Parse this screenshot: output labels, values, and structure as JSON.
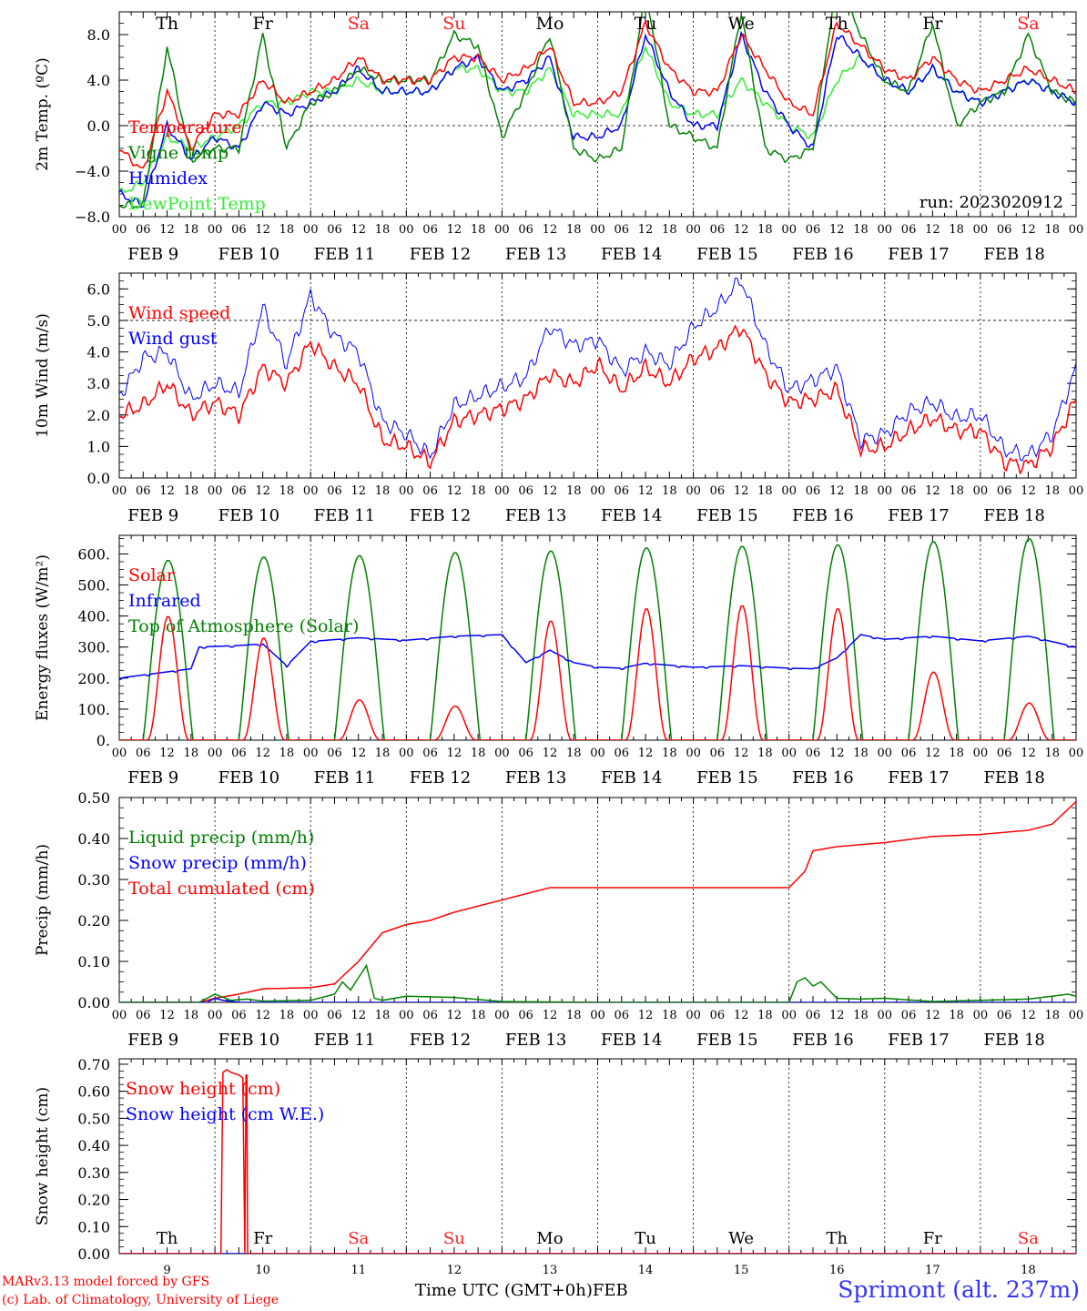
{
  "time_axis": {
    "day_names": [
      "Th",
      "Fr",
      "Sa",
      "Su",
      "Mo",
      "Tu",
      "We",
      "Th",
      "Fr",
      "Sa"
    ],
    "day_name_colors": [
      "#000000",
      "#000000",
      "#ff2020",
      "#ff2020",
      "#000000",
      "#000000",
      "#000000",
      "#000000",
      "#000000",
      "#ff2020"
    ],
    "date_labels": [
      "FEB  9",
      "FEB 10",
      "FEB 11",
      "FEB 12",
      "FEB 13",
      "FEB 14",
      "FEB 15",
      "FEB 16",
      "FEB 17",
      "FEB 18"
    ],
    "hour_ticks": [
      "00",
      "06",
      "12",
      "18"
    ],
    "final_tick": "00",
    "day_numbers": [
      "9",
      "10",
      "11",
      "12",
      "13",
      "14",
      "15",
      "16",
      "17",
      "18"
    ],
    "title": "Time UTC (GMT+0h)",
    "month": "FEB"
  },
  "run_label": "run: 2023020912",
  "credits": [
    "MARv3.13 model forced by GFS",
    "(c) Lab. of Climatology, University of Liege"
  ],
  "station": "Sprimont (alt. 237m)",
  "chart_data": [
    {
      "type": "line",
      "ylabel": "2m Temp. (ºC)",
      "ylim": [
        -8,
        10
      ],
      "yticks": [
        "8.0",
        "4.0",
        "0.0",
        "−4.0",
        "−8.0"
      ],
      "ytick_values": [
        8,
        4,
        0,
        -4,
        -8
      ],
      "ref_line": 0,
      "grid": "vertical day lines",
      "x_unit": "hours since FEB 9 00 UTC",
      "series": [
        {
          "name": "Temperature",
          "color": "#ff0000",
          "x": [
            0,
            6,
            12,
            18,
            24,
            30,
            36,
            42,
            48,
            54,
            60,
            66,
            72,
            78,
            84,
            90,
            96,
            102,
            108,
            114,
            120,
            126,
            132,
            138,
            144,
            150,
            156,
            162,
            168,
            174,
            180,
            186,
            192,
            198,
            204,
            210,
            216,
            222,
            228,
            234,
            240
          ],
          "values": [
            -2,
            -4,
            3,
            -2,
            1,
            1,
            4,
            2,
            3,
            4,
            6,
            4,
            4,
            4,
            6,
            6,
            4,
            5,
            7,
            2,
            2,
            3,
            9,
            5,
            3,
            3,
            8,
            5,
            2,
            1,
            9,
            7,
            5,
            4,
            6,
            4,
            3,
            4,
            5,
            4,
            3
          ]
        },
        {
          "name": "Vigne temp",
          "color": "#008000",
          "x": [
            0,
            6,
            12,
            18,
            24,
            30,
            36,
            42,
            48,
            54,
            60,
            66,
            72,
            78,
            84,
            90,
            96,
            102,
            108,
            114,
            120,
            126,
            132,
            138,
            144,
            150,
            156,
            162,
            168,
            174,
            180,
            186,
            192,
            198,
            204,
            210,
            216,
            222,
            228,
            234,
            240
          ],
          "values": [
            -7,
            -7,
            7,
            -3,
            -2,
            -2,
            8,
            -2,
            2,
            3,
            5,
            4,
            4,
            4,
            8,
            7,
            -1,
            3,
            8,
            -2,
            -3,
            -2,
            12,
            0,
            -1,
            -2,
            10,
            -2,
            -3,
            -2,
            13,
            8,
            4,
            3,
            9,
            0,
            2,
            3,
            8,
            3,
            2
          ]
        },
        {
          "name": "Humidex",
          "color": "#0000ff",
          "x": [
            0,
            6,
            12,
            18,
            24,
            30,
            36,
            42,
            48,
            54,
            60,
            66,
            72,
            78,
            84,
            90,
            96,
            102,
            108,
            114,
            120,
            126,
            132,
            138,
            144,
            150,
            156,
            162,
            168,
            174,
            180,
            186,
            192,
            198,
            204,
            210,
            216,
            222,
            228,
            234,
            240
          ],
          "values": [
            -6,
            -7,
            0,
            -3,
            -1,
            -2,
            2,
            1,
            2,
            3,
            5,
            3,
            3,
            3,
            5,
            6,
            3,
            4,
            6,
            -1,
            -1,
            0,
            8,
            3,
            0,
            0,
            8,
            3,
            0,
            -2,
            8,
            6,
            4,
            3,
            5,
            3,
            2,
            3,
            4,
            3,
            2
          ]
        },
        {
          "name": "DewPoint Temp",
          "color": "#33ee33",
          "x": [
            0,
            6,
            12,
            18,
            24,
            30,
            36,
            42,
            48,
            54,
            60,
            66,
            72,
            78,
            84,
            90,
            96,
            102,
            108,
            114,
            120,
            126,
            132,
            138,
            144,
            150,
            156,
            162,
            168,
            174,
            180,
            186,
            192,
            198,
            204,
            210,
            216,
            222,
            228,
            234,
            240
          ],
          "values": [
            -6,
            -5,
            -1,
            -2,
            -1,
            0,
            2,
            2,
            3,
            3,
            4,
            3,
            3,
            3,
            5,
            5,
            3,
            3,
            5,
            1,
            1,
            1,
            7,
            2,
            1,
            1,
            4,
            2,
            0,
            -1,
            4,
            6,
            4,
            3,
            5,
            3,
            2,
            3,
            4,
            3,
            2
          ]
        }
      ]
    },
    {
      "type": "line",
      "ylabel": "10m Wind (m/s)",
      "ylim": [
        0,
        6.5
      ],
      "yticks": [
        "6.0",
        "5.0",
        "4.0",
        "3.0",
        "2.0",
        "1.0",
        "0.0"
      ],
      "ytick_values": [
        6,
        5,
        4,
        3,
        2,
        1,
        0
      ],
      "ref_line": 5,
      "grid": "vertical day lines",
      "x_unit": "hours since FEB 9 00 UTC",
      "series": [
        {
          "name": "Wind speed",
          "color": "#ff0000",
          "x": [
            0,
            6,
            12,
            18,
            24,
            30,
            36,
            42,
            48,
            54,
            60,
            66,
            72,
            78,
            84,
            90,
            96,
            102,
            108,
            114,
            120,
            126,
            132,
            138,
            144,
            150,
            156,
            162,
            168,
            174,
            180,
            186,
            192,
            198,
            204,
            210,
            216,
            222,
            228,
            234,
            240
          ],
          "values": [
            2,
            2.3,
            3,
            2,
            2.4,
            2,
            3.5,
            3,
            4.3,
            3.5,
            3,
            1.2,
            1,
            0.5,
            1.8,
            2,
            2.2,
            2.5,
            3.3,
            3,
            3.6,
            2.8,
            3.5,
            3,
            3.8,
            4.1,
            4.8,
            3.3,
            2.4,
            2.5,
            2.8,
            0.9,
            1,
            1.5,
            1.9,
            1.5,
            1.5,
            0.5,
            0.4,
            1,
            2.5
          ]
        },
        {
          "name": "Wind gust",
          "color": "#0000ff",
          "x": [
            0,
            6,
            12,
            18,
            24,
            30,
            36,
            42,
            48,
            54,
            60,
            66,
            72,
            78,
            84,
            90,
            96,
            102,
            108,
            114,
            120,
            126,
            132,
            138,
            144,
            150,
            156,
            162,
            168,
            174,
            180,
            186,
            192,
            198,
            204,
            210,
            216,
            222,
            228,
            234,
            240
          ],
          "values": [
            2.6,
            3.8,
            4,
            2.5,
            3,
            2.7,
            5.4,
            3.6,
            5.8,
            4.5,
            4,
            1.8,
            1.4,
            0.7,
            2.3,
            2.6,
            2.9,
            3.2,
            4.8,
            4.2,
            4.4,
            3.4,
            4,
            3.6,
            4.8,
            5.4,
            6.3,
            4.2,
            2.8,
            3.1,
            3.5,
            1.2,
            1.4,
            2.1,
            2.4,
            1.9,
            2,
            0.9,
            0.7,
            1.4,
            3.5
          ]
        }
      ]
    },
    {
      "type": "line",
      "ylabel": "Energy fluxes (W/m²)",
      "ylim": [
        0,
        660
      ],
      "yticks": [
        "600.",
        "500.",
        "400.",
        "300.",
        "200.",
        "100.",
        "0."
      ],
      "ytick_values": [
        600,
        500,
        400,
        300,
        200,
        100,
        0
      ],
      "grid": "vertical day lines",
      "x_unit": "hours since FEB 9 00 UTC",
      "solar_peaks_by_day": [
        400,
        330,
        130,
        110,
        385,
        425,
        435,
        425,
        220,
        120
      ],
      "toa_peaks_by_day": [
        580,
        590,
        595,
        605,
        610,
        620,
        625,
        630,
        640,
        650
      ],
      "series": [
        {
          "name": "Solar",
          "color": "#ff0000",
          "values": [
            400,
            330,
            130,
            110,
            385,
            425,
            435,
            425,
            220,
            120
          ]
        },
        {
          "name": "Infrared",
          "color": "#0000ff",
          "x": [
            0,
            6,
            12,
            18,
            20,
            30,
            36,
            42,
            48,
            60,
            72,
            84,
            96,
            102,
            108,
            114,
            120,
            126,
            132,
            144,
            156,
            168,
            174,
            180,
            186,
            192,
            204,
            216,
            228,
            240
          ],
          "values": [
            200,
            210,
            220,
            230,
            300,
            305,
            310,
            240,
            318,
            330,
            322,
            335,
            340,
            250,
            290,
            250,
            235,
            232,
            248,
            235,
            240,
            232,
            230,
            265,
            340,
            325,
            335,
            320,
            335,
            300
          ]
        },
        {
          "name": "Top of Atmosphere (Solar)",
          "color": "#008000",
          "values": [
            580,
            590,
            595,
            605,
            610,
            620,
            625,
            630,
            640,
            650
          ]
        }
      ]
    },
    {
      "type": "line",
      "ylabel": "Precip (mm/h)",
      "ylim": [
        0,
        0.5
      ],
      "yticks": [
        "0.50",
        "0.40",
        "0.30",
        "0.20",
        "0.10",
        "0.00"
      ],
      "ytick_values": [
        0.5,
        0.4,
        0.3,
        0.2,
        0.1,
        0
      ],
      "grid": "vertical day lines",
      "x_unit": "hours since FEB 9 00 UTC",
      "series": [
        {
          "name": "Liquid precip (mm/h)",
          "color": "#008000",
          "x": [
            0,
            20,
            24,
            28,
            32,
            36,
            48,
            54,
            56,
            58,
            60,
            62,
            64,
            66,
            72,
            84,
            96,
            120,
            168,
            170,
            172,
            174,
            176,
            180,
            186,
            192,
            204,
            216,
            228,
            234,
            238,
            240
          ],
          "values": [
            0,
            0,
            0.02,
            0.005,
            0.008,
            0.003,
            0.005,
            0.02,
            0.05,
            0.03,
            0.06,
            0.09,
            0.01,
            0.005,
            0.015,
            0.012,
            0.002,
            0,
            0,
            0.05,
            0.06,
            0.04,
            0.05,
            0.01,
            0.008,
            0.01,
            0.002,
            0.005,
            0.008,
            0.015,
            0.02,
            0.015
          ]
        },
        {
          "name": "Snow precip (mm/h)",
          "color": "#0000ff",
          "x": [
            0,
            22,
            24,
            26,
            28,
            30,
            240
          ],
          "values": [
            0,
            0,
            0.01,
            0.005,
            0.003,
            0,
            0
          ]
        },
        {
          "name": "Total cumulated (cm)",
          "color": "#ff0000",
          "x": [
            0,
            20,
            24,
            30,
            36,
            48,
            54,
            60,
            66,
            72,
            78,
            84,
            90,
            96,
            108,
            120,
            144,
            168,
            172,
            174,
            180,
            192,
            204,
            216,
            228,
            234,
            240
          ],
          "values": [
            0,
            0,
            0.01,
            0.02,
            0.033,
            0.036,
            0.045,
            0.1,
            0.17,
            0.19,
            0.2,
            0.22,
            0.235,
            0.25,
            0.28,
            0.28,
            0.28,
            0.28,
            0.32,
            0.37,
            0.38,
            0.39,
            0.405,
            0.41,
            0.42,
            0.435,
            0.49
          ]
        }
      ]
    },
    {
      "type": "line",
      "ylabel": "Snow height (cm)",
      "ylim": [
        0,
        0.72
      ],
      "yticks": [
        "0.70",
        "0.60",
        "0.50",
        "0.40",
        "0.30",
        "0.20",
        "0.10",
        "0.00"
      ],
      "ytick_values": [
        0.7,
        0.6,
        0.5,
        0.4,
        0.3,
        0.2,
        0.1,
        0
      ],
      "grid": "vertical day lines",
      "x_unit": "hours since FEB 9 00 UTC",
      "series": [
        {
          "name": "Snow height (cm)",
          "color": "#ff0000",
          "x": [
            0,
            25.5,
            26,
            27,
            28,
            29,
            30,
            31,
            31.5,
            31.8,
            32,
            32.2,
            240
          ],
          "values": [
            0,
            0,
            0.67,
            0.68,
            0.67,
            0.665,
            0.66,
            0.65,
            0,
            0.66,
            0.66,
            0,
            0
          ]
        },
        {
          "name": "Snow height (cm W.E.)",
          "color": "#0000ff",
          "x": [
            0,
            240
          ],
          "values": [
            0,
            0
          ]
        }
      ]
    }
  ]
}
